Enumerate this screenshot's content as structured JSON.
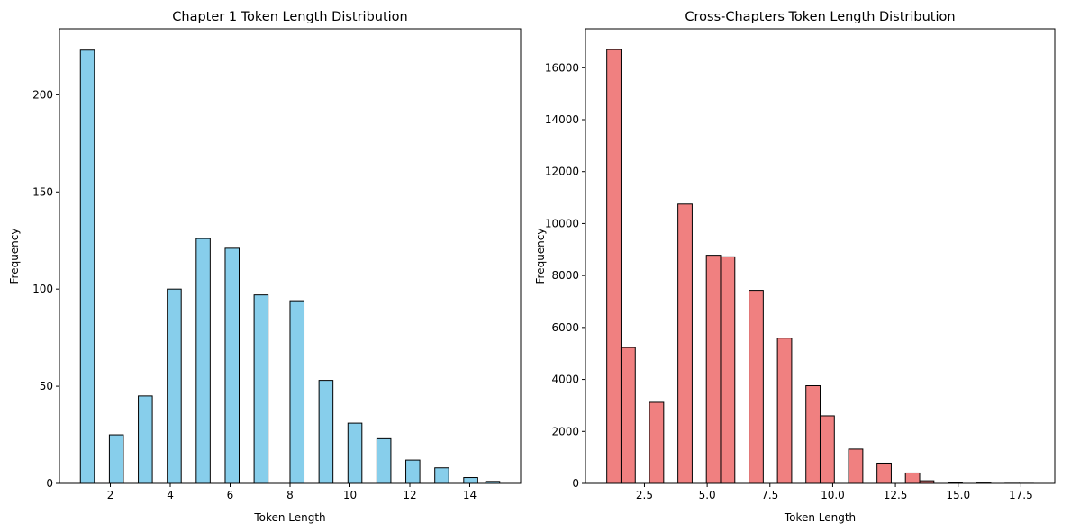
{
  "figure": {
    "background": "#ffffff"
  },
  "chart_data": [
    {
      "type": "bar",
      "title": "Chapter 1 Token Length Distribution",
      "xlabel": "Token Length",
      "ylabel": "Frequency",
      "xlim": [
        0.3,
        15.7
      ],
      "ylim": [
        0,
        234
      ],
      "xticks": [
        2,
        4,
        6,
        8,
        10,
        12,
        14
      ],
      "xtick_labels": [
        "2",
        "4",
        "6",
        "8",
        "10",
        "12",
        "14"
      ],
      "yticks": [
        0,
        50,
        100,
        150,
        200
      ],
      "ytick_labels": [
        "0",
        "50",
        "100",
        "150",
        "200"
      ],
      "bar_width": 0.467,
      "bar_color": "#87ceeb",
      "edge_color": "#000000",
      "bars": [
        {
          "x": 1.233,
          "value": 223
        },
        {
          "x": 2.2,
          "value": 25
        },
        {
          "x": 3.167,
          "value": 45
        },
        {
          "x": 4.133,
          "value": 100
        },
        {
          "x": 5.1,
          "value": 126
        },
        {
          "x": 6.067,
          "value": 121
        },
        {
          "x": 7.033,
          "value": 97
        },
        {
          "x": 8.233,
          "value": 94
        },
        {
          "x": 9.2,
          "value": 53
        },
        {
          "x": 10.167,
          "value": 31
        },
        {
          "x": 11.133,
          "value": 23
        },
        {
          "x": 12.1,
          "value": 12
        },
        {
          "x": 13.067,
          "value": 8
        },
        {
          "x": 14.033,
          "value": 3
        },
        {
          "x": 14.767,
          "value": 1
        }
      ]
    },
    {
      "type": "bar",
      "title": "Cross-Chapters Token Length Distribution",
      "xlabel": "Token Length",
      "ylabel": "Frequency",
      "xlim": [
        0.15,
        18.85
      ],
      "ylim": [
        0,
        17500
      ],
      "xticks": [
        2.5,
        5.0,
        7.5,
        10.0,
        12.5,
        15.0,
        17.5
      ],
      "xtick_labels": [
        "2.5",
        "5.0",
        "7.5",
        "10.0",
        "12.5",
        "15.0",
        "17.5"
      ],
      "yticks": [
        0,
        2000,
        4000,
        6000,
        8000,
        10000,
        12000,
        14000,
        16000
      ],
      "ytick_labels": [
        "0",
        "2000",
        "4000",
        "6000",
        "8000",
        "10000",
        "12000",
        "14000",
        "16000"
      ],
      "bar_width": 0.567,
      "bar_color": "#f08080",
      "edge_color": "#000000",
      "bars": [
        {
          "x": 1.283,
          "value": 16700
        },
        {
          "x": 1.85,
          "value": 5230
        },
        {
          "x": 2.983,
          "value": 3120
        },
        {
          "x": 4.117,
          "value": 10750
        },
        {
          "x": 5.25,
          "value": 8780
        },
        {
          "x": 5.817,
          "value": 8720
        },
        {
          "x": 6.95,
          "value": 7430
        },
        {
          "x": 8.083,
          "value": 5590
        },
        {
          "x": 9.217,
          "value": 3760
        },
        {
          "x": 9.783,
          "value": 2600
        },
        {
          "x": 10.917,
          "value": 1320
        },
        {
          "x": 12.05,
          "value": 780
        },
        {
          "x": 13.183,
          "value": 400
        },
        {
          "x": 13.75,
          "value": 100
        },
        {
          "x": 14.883,
          "value": 30
        },
        {
          "x": 16.017,
          "value": 15
        },
        {
          "x": 17.15,
          "value": 5
        },
        {
          "x": 17.717,
          "value": 3
        }
      ]
    }
  ]
}
